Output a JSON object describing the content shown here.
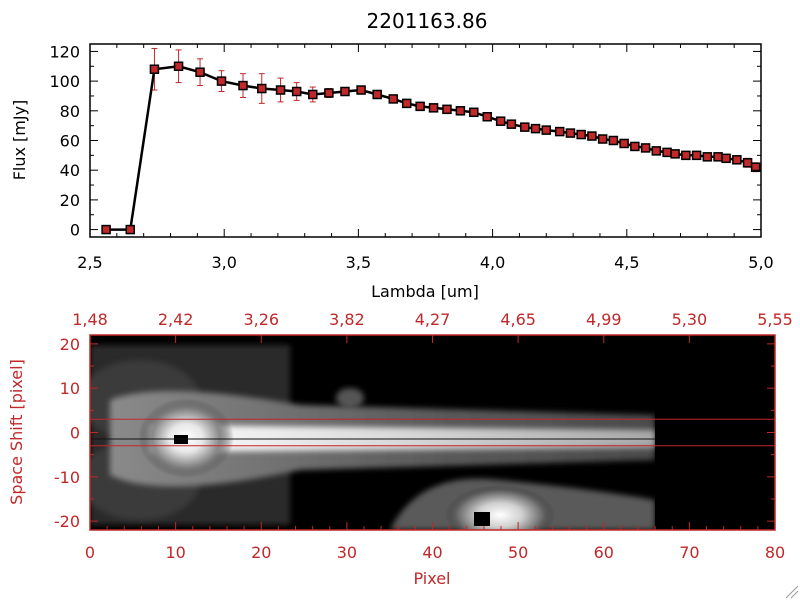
{
  "chart_data": [
    {
      "type": "line",
      "title": "2201163.86",
      "xlabel": "Lambda [um]",
      "ylabel": "Flux [mJy]",
      "xlim": [
        2.5,
        5.0
      ],
      "ylim": [
        -5,
        125
      ],
      "xticks": [
        2.5,
        3.0,
        3.5,
        4.0,
        4.5,
        5.0
      ],
      "xtick_labels": [
        "2,5",
        "3,0",
        "3,5",
        "4,0",
        "4,5",
        "5,0"
      ],
      "yticks": [
        0,
        20,
        40,
        60,
        80,
        100,
        120
      ],
      "ytick_labels": [
        "0",
        "20",
        "40",
        "60",
        "80",
        "100",
        "120"
      ],
      "grid": false,
      "line_color": "#000000",
      "marker_color": "#c0282a",
      "errorbar_color": "#c0282a",
      "series": [
        {
          "x": [
            2.56,
            2.65,
            2.74,
            2.83,
            2.91,
            2.99,
            3.07,
            3.14,
            3.21,
            3.27,
            3.33,
            3.39,
            3.45,
            3.51,
            3.57,
            3.63,
            3.68,
            3.73,
            3.78,
            3.83,
            3.88,
            3.93,
            3.98,
            4.03,
            4.07,
            4.12,
            4.16,
            4.2,
            4.25,
            4.29,
            4.33,
            4.37,
            4.41,
            4.45,
            4.49,
            4.53,
            4.57,
            4.61,
            4.65,
            4.68,
            4.72,
            4.76,
            4.8,
            4.84,
            4.87,
            4.91,
            4.95,
            4.98
          ],
          "y": [
            0,
            0,
            108,
            110,
            106,
            100,
            97,
            95,
            94,
            93,
            91,
            92,
            93,
            94,
            91,
            88,
            85,
            83,
            82,
            81,
            80,
            79,
            76,
            73,
            71,
            69,
            68,
            67,
            66,
            65,
            64,
            63,
            61,
            60,
            58,
            56,
            55,
            53,
            52,
            51,
            50,
            50,
            49,
            49,
            48,
            47,
            45,
            42
          ],
          "yerr": [
            0,
            0,
            14,
            11,
            9,
            7,
            8,
            10,
            8,
            6,
            5,
            3,
            2,
            2,
            2,
            2,
            2,
            2,
            2,
            2,
            2,
            2,
            2,
            2,
            2,
            2,
            2,
            2,
            2,
            2,
            2,
            2,
            2,
            2,
            2,
            2,
            2,
            2,
            2,
            2,
            2,
            2,
            2,
            2,
            2,
            2,
            3,
            3
          ]
        }
      ]
    },
    {
      "type": "heatmap",
      "xlabel": "Pixel",
      "ylabel": "Space Shift [pixel]",
      "xlim": [
        0,
        80
      ],
      "ylim": [
        -22,
        22
      ],
      "xticks": [
        0,
        10,
        20,
        30,
        40,
        50,
        60,
        70,
        80
      ],
      "xtick_labels": [
        "0",
        "10",
        "20",
        "30",
        "40",
        "50",
        "60",
        "70",
        "80"
      ],
      "yticks": [
        -20,
        -10,
        0,
        10,
        20
      ],
      "ytick_labels": [
        "-20",
        "-10",
        "0",
        "10",
        "20"
      ],
      "top_axis_labels": [
        "1,48",
        "2,42",
        "3,26",
        "3,82",
        "4,27",
        "4,65",
        "4,99",
        "5,30",
        "5,55"
      ],
      "horizontal_lines": [
        3,
        -3
      ],
      "axis_color": "#c0282a",
      "colormap": "grayscale"
    }
  ]
}
